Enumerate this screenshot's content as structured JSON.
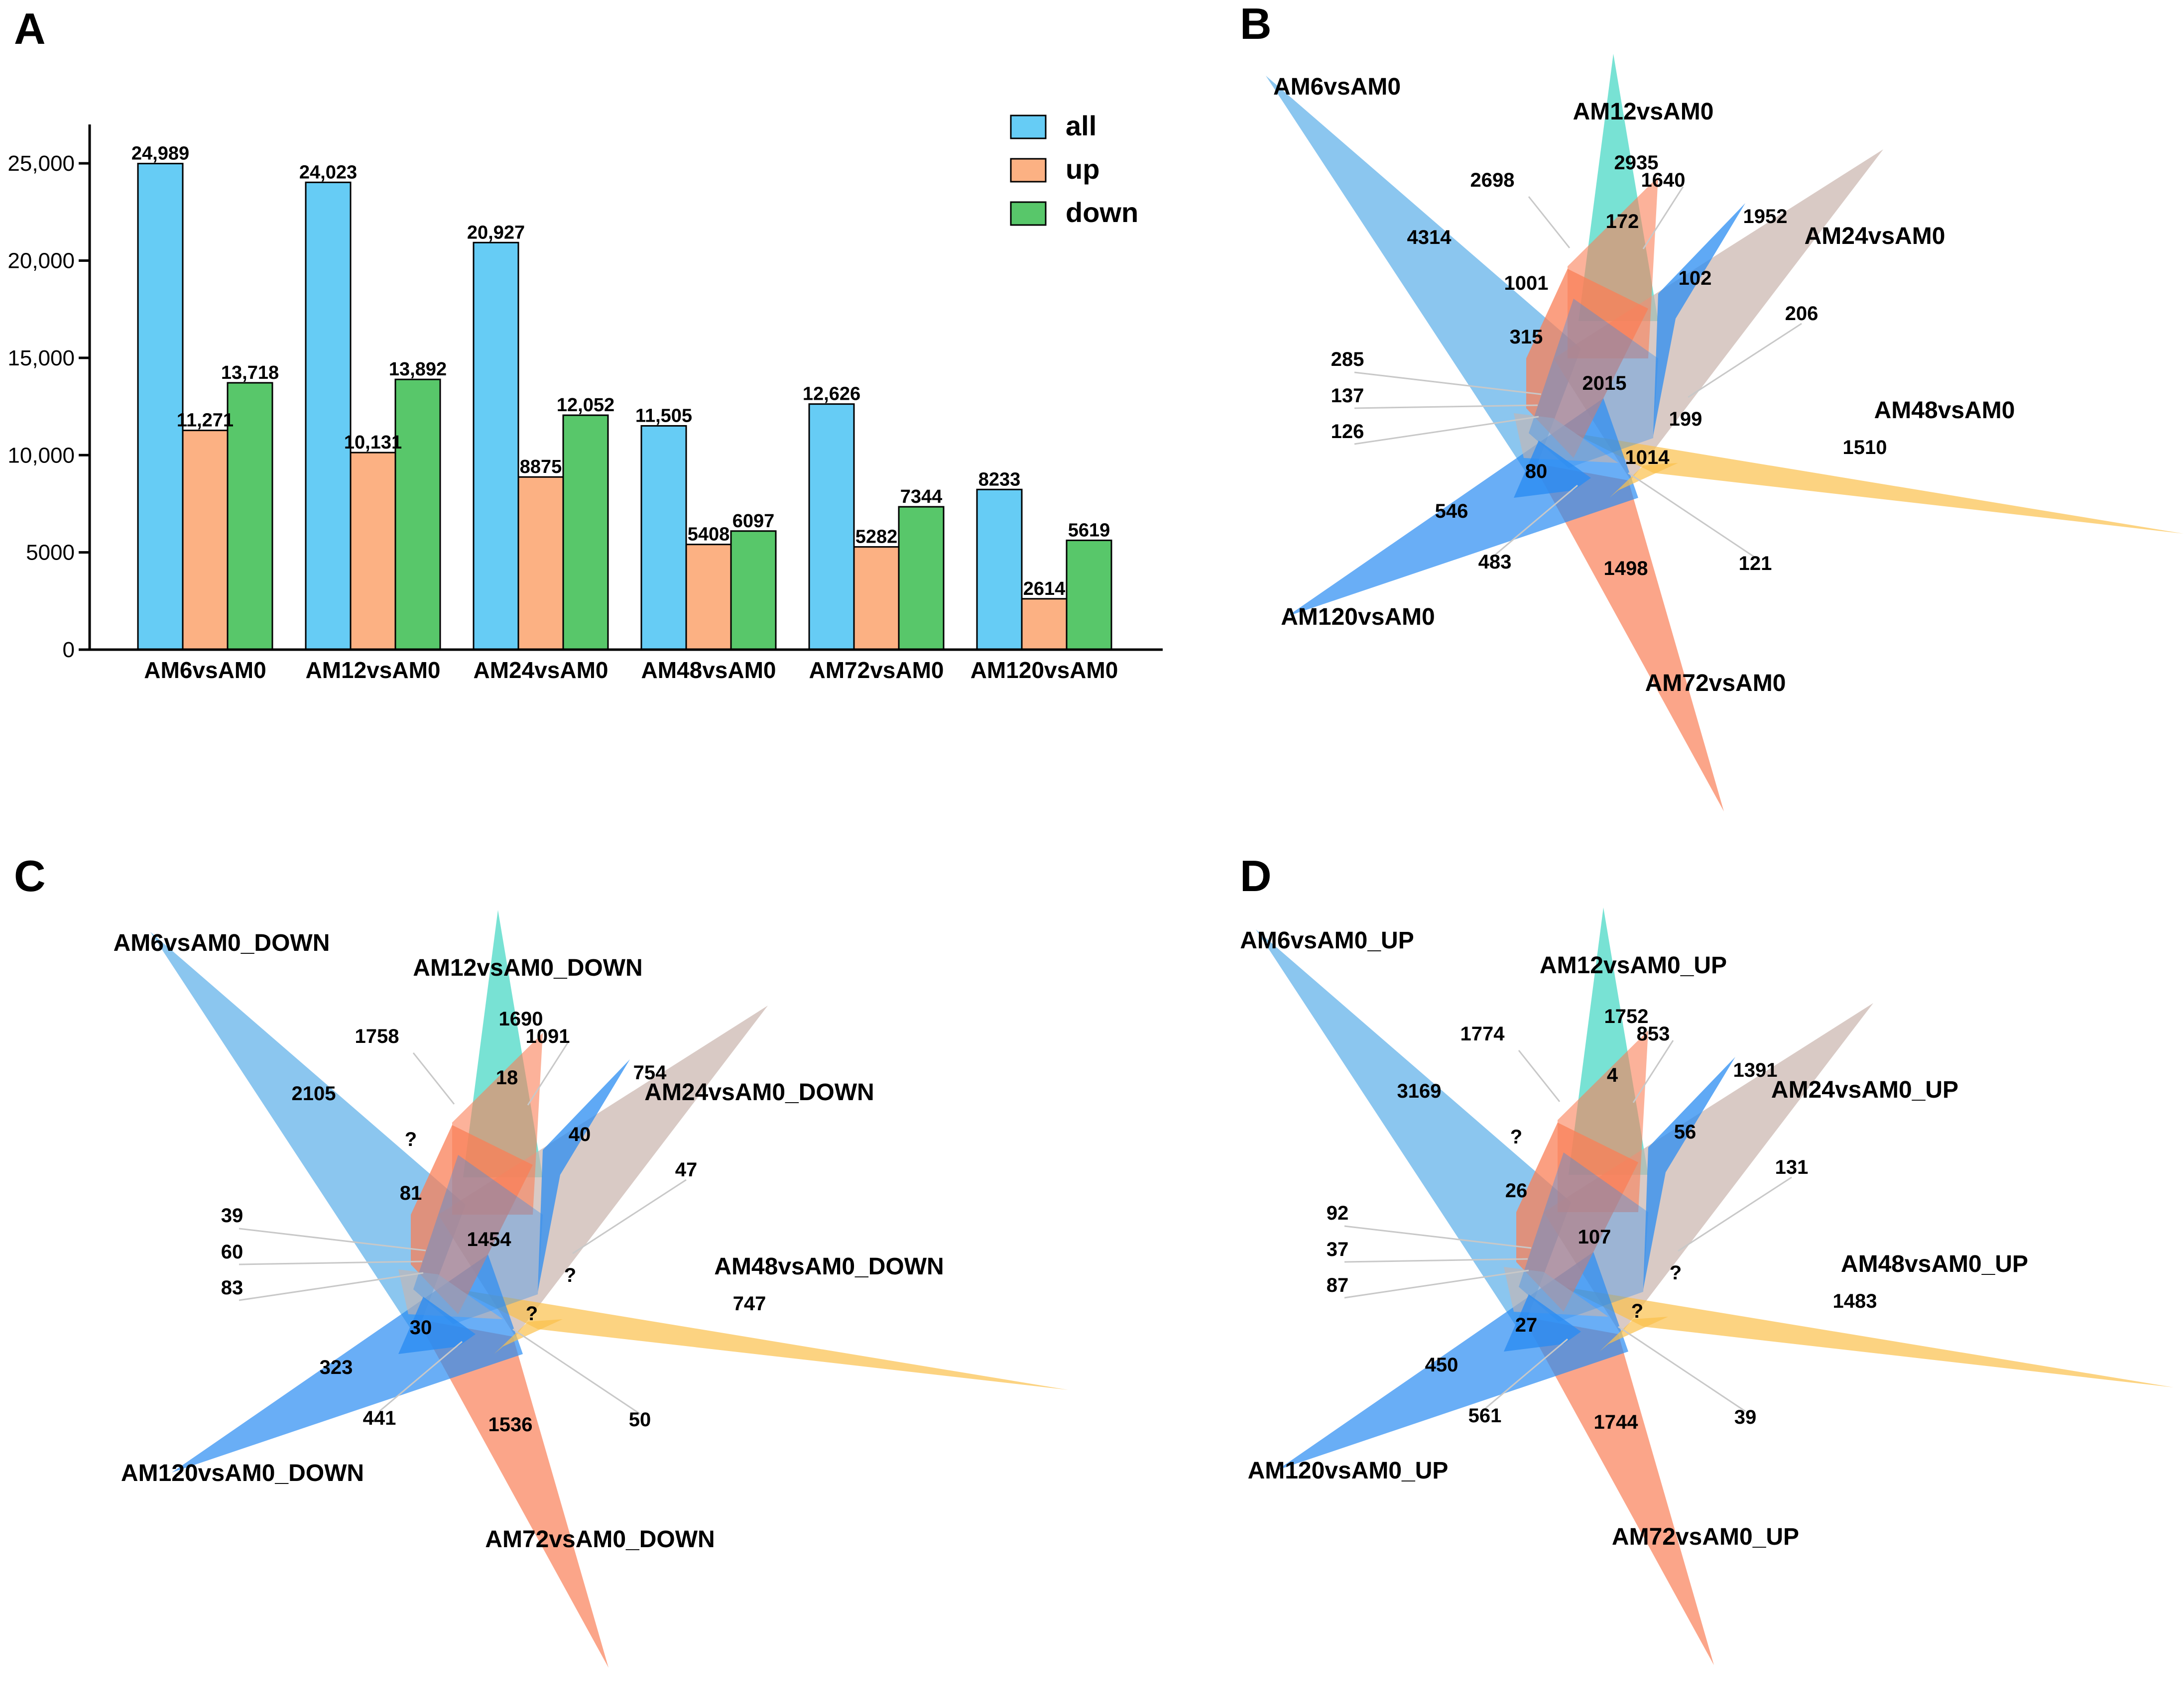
{
  "panels": {
    "A": "A",
    "B": "B",
    "C": "C",
    "D": "D"
  },
  "colors": {
    "all": "#66ccf5",
    "up": "#fcb183",
    "down": "#58c76a",
    "venn": [
      "#5aaee8",
      "#3ed6c2",
      "#c9b4ad",
      "#fbc04c",
      "#fa7f57",
      "#2a8cf2"
    ]
  },
  "chart_data": [
    {
      "type": "bar",
      "panel": "A",
      "categories": [
        "AM6vsAM0",
        "AM12vsAM0",
        "AM24vsAM0",
        "AM48vsAM0",
        "AM72vsAM0",
        "AM120vsAM0"
      ],
      "series": [
        {
          "name": "all",
          "values": [
            24989,
            24023,
            20927,
            11505,
            12626,
            8233
          ],
          "labels": [
            "24,989",
            "24,023",
            "20,927",
            "11,505",
            "12,626",
            "8233"
          ]
        },
        {
          "name": "up",
          "values": [
            11271,
            10131,
            8875,
            5408,
            5282,
            2614
          ],
          "labels": [
            "11,271",
            "10,131",
            "8875",
            "5408",
            "5282",
            "2614"
          ]
        },
        {
          "name": "down",
          "values": [
            13718,
            13892,
            12052,
            6097,
            7344,
            5619
          ],
          "labels": [
            "13,718",
            "13,892",
            "12,052",
            "6097",
            "7344",
            "5619"
          ]
        }
      ],
      "yticks": [
        "0",
        "5000",
        "10,000",
        "15,000",
        "20,000",
        "25,000"
      ],
      "ytick_values": [
        0,
        5000,
        10000,
        15000,
        20000,
        25000
      ],
      "ylim": [
        0,
        27000
      ],
      "legend": "top-right",
      "title": "",
      "xlabel": "",
      "ylabel": ""
    },
    {
      "type": "venn",
      "panel": "B",
      "sets": [
        "AM6vsAM0",
        "AM12vsAM0",
        "AM24vsAM0",
        "AM48vsAM0",
        "AM72vsAM0",
        "AM120vsAM0"
      ],
      "region_values": [
        "4314",
        "2935",
        "1952",
        "1510",
        "1498",
        "546",
        "2698",
        "1640",
        "206",
        "121",
        "483",
        "285",
        "137",
        "126",
        "172",
        "1001",
        "102",
        "315",
        "2015",
        "199",
        "1014",
        "80"
      ]
    },
    {
      "type": "venn",
      "panel": "C",
      "sets": [
        "AM6vsAM0_DOWN",
        "AM12vsAM0_DOWN",
        "AM24vsAM0_DOWN",
        "AM48vsAM0_DOWN",
        "AM72vsAM0_DOWN",
        "AM120vsAM0_DOWN"
      ],
      "region_values": [
        "2105",
        "1690",
        "754",
        "747",
        "1536",
        "323",
        "1758",
        "1091",
        "47",
        "50",
        "441",
        "39",
        "60",
        "83",
        "18",
        "?",
        "40",
        "81",
        "1454",
        "?",
        "?",
        "30"
      ]
    },
    {
      "type": "venn",
      "panel": "D",
      "sets": [
        "AM6vsAM0_UP",
        "AM12vsAM0_UP",
        "AM24vsAM0_UP",
        "AM48vsAM0_UP",
        "AM72vsAM0_UP",
        "AM120vsAM0_UP"
      ],
      "region_values": [
        "3169",
        "1752",
        "1391",
        "1483",
        "1744",
        "450",
        "1774",
        "853",
        "131",
        "39",
        "561",
        "92",
        "37",
        "87",
        "4",
        "?",
        "56",
        "26",
        "107",
        "?",
        "?",
        "27"
      ]
    }
  ]
}
